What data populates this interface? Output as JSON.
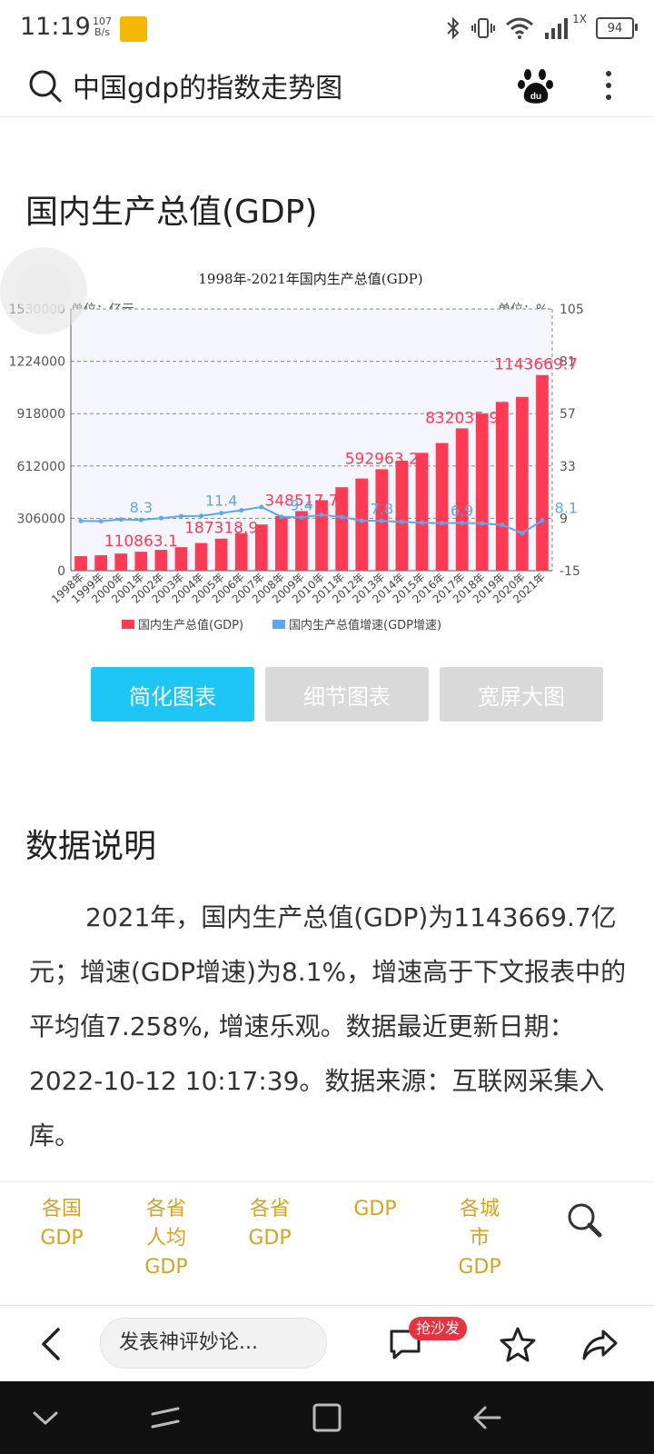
{
  "status_bar": {
    "time": "11:19",
    "net_speed_value": "107",
    "net_speed_unit": "B/s",
    "speed_label": "1X",
    "battery": "94"
  },
  "search": {
    "query": "中国gdp的指数走势图"
  },
  "section1": {
    "title": "国内生产总值(GDP)"
  },
  "chart_data": {
    "type": "bar",
    "title": "1998年-2021年国内生产总值(GDP)",
    "left_unit_label": "单位：亿元",
    "right_unit_label": "单位：%",
    "categories": [
      "1998年",
      "1999年",
      "2000年",
      "2001年",
      "2002年",
      "2003年",
      "2004年",
      "2005年",
      "2006年",
      "2007年",
      "2008年",
      "2009年",
      "2010年",
      "2011年",
      "2012年",
      "2013年",
      "2014年",
      "2015年",
      "2016年",
      "2017年",
      "2018年",
      "2019年",
      "2020年",
      "2021年"
    ],
    "series": [
      {
        "name": "国内生产总值(GDP)",
        "type": "bar",
        "color": "#ff3a52",
        "values": [
          85195.5,
          90564.4,
          100280.1,
          110863.1,
          121717.4,
          137422.0,
          161840.2,
          187318.9,
          219438.5,
          270092.3,
          319244.6,
          348517.7,
          412119.3,
          487940.2,
          538580.0,
          592963.2,
          643563.1,
          688858.2,
          746395.1,
          832035.9,
          919281.1,
          986515.2,
          1015986.2,
          1143669.7
        ]
      },
      {
        "name": "国内生产总值增速(GDP增速)",
        "type": "line",
        "color": "#5aa9f0",
        "values": [
          7.8,
          7.7,
          8.5,
          8.3,
          9.1,
          10.0,
          10.1,
          11.4,
          12.7,
          14.2,
          9.7,
          9.4,
          10.6,
          9.6,
          7.9,
          7.8,
          7.4,
          7.0,
          6.8,
          6.9,
          6.7,
          6.0,
          2.2,
          8.1
        ]
      }
    ],
    "data_labels": [
      {
        "series": 0,
        "index": 3,
        "text": "110863.1"
      },
      {
        "series": 0,
        "index": 7,
        "text": "187318.9"
      },
      {
        "series": 0,
        "index": 11,
        "text": "348517.7"
      },
      {
        "series": 0,
        "index": 15,
        "text": "592963.2"
      },
      {
        "series": 0,
        "index": 19,
        "text": "832035.9"
      },
      {
        "series": 0,
        "index": 23,
        "text": "1143669.7"
      },
      {
        "series": 1,
        "index": 3,
        "text": "8.3"
      },
      {
        "series": 1,
        "index": 7,
        "text": "11.4"
      },
      {
        "series": 1,
        "index": 11,
        "text": "9.4"
      },
      {
        "series": 1,
        "index": 15,
        "text": "7.8"
      },
      {
        "series": 1,
        "index": 19,
        "text": "6.9"
      },
      {
        "series": 1,
        "index": 23,
        "text": "8.1"
      }
    ],
    "y_left_ticks": [
      "0",
      "306000",
      "612000",
      "918000",
      "1224000",
      "1530000"
    ],
    "y_left_range": [
      0,
      1530000
    ],
    "y_right_ticks": [
      "-15",
      "9",
      "33",
      "57",
      "81",
      "105"
    ],
    "y_right_range": [
      -15,
      105
    ],
    "grid": true,
    "legend_position": "bottom"
  },
  "chart_buttons": [
    {
      "label": "简化图表",
      "active": true
    },
    {
      "label": "细节图表",
      "active": false
    },
    {
      "label": "宽屏大图",
      "active": false
    }
  ],
  "section2": {
    "title": "数据说明",
    "paragraph": "2021年，国内生产总值(GDP)为1143669.7亿元；增速(GDP增速)为8.1%，增速高于下文报表中的平均值7.258%, 增速乐观。数据最近更新日期：2022-10-12 10:17:39。数据来源：互联网采集入库。"
  },
  "links": [
    {
      "line1": "各国",
      "line2": "GDP",
      "line3": ""
    },
    {
      "line1": "各省",
      "line2": "人均",
      "line3": "GDP"
    },
    {
      "line1": "各省",
      "line2": "GDP",
      "line3": ""
    },
    {
      "line1": "GDP",
      "line2": "",
      "line3": ""
    },
    {
      "line1": "各城",
      "line2": "市",
      "line3": "GDP"
    }
  ],
  "bottom_bar": {
    "comment_placeholder": "发表神评妙论...",
    "sofa_badge": "抢沙发"
  },
  "colors": {
    "bar": "#ff3a52",
    "line": "#5aa9f0",
    "active_button": "#1ec6f5",
    "inactive_button": "#d9d9d9",
    "link": "#d7a31e",
    "plot_bg": "#f4f5fd"
  }
}
